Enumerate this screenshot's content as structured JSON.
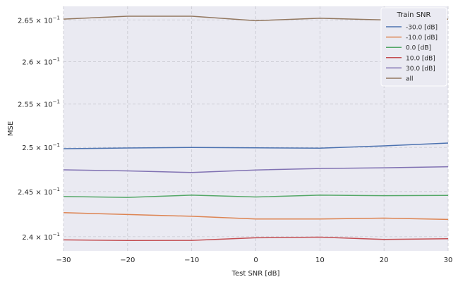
{
  "chart_data": {
    "type": "line",
    "xlabel": "Test SNR [dB]",
    "ylabel": "MSE",
    "x": [
      -30,
      -20,
      -10,
      0,
      10,
      20,
      30
    ],
    "xlim": [
      -30,
      30
    ],
    "ylim": [
      0.23845,
      0.26665
    ],
    "yscale": "log",
    "grid": true,
    "legend_title": "Train SNR",
    "legend_position": "top-right",
    "xticks": [
      {
        "value": -30,
        "label": "−30"
      },
      {
        "value": -20,
        "label": "−20"
      },
      {
        "value": -10,
        "label": "−10"
      },
      {
        "value": 0,
        "label": "0"
      },
      {
        "value": 10,
        "label": "10"
      },
      {
        "value": 20,
        "label": "20"
      },
      {
        "value": 30,
        "label": "30"
      }
    ],
    "yticks": [
      {
        "value": 0.24,
        "mantissa": "2.4",
        "exp": "−1"
      },
      {
        "value": 0.245,
        "mantissa": "2.45",
        "exp": "−1"
      },
      {
        "value": 0.25,
        "mantissa": "2.5",
        "exp": "−1"
      },
      {
        "value": 0.255,
        "mantissa": "2.55",
        "exp": "−1"
      },
      {
        "value": 0.26,
        "mantissa": "2.6",
        "exp": "−1"
      },
      {
        "value": 0.265,
        "mantissa": "2.65",
        "exp": "−1"
      }
    ],
    "series": [
      {
        "name": "-30.0 [dB]",
        "color": "#4c72b0",
        "values": [
          0.24985,
          0.24993,
          0.25,
          0.24995,
          0.24992,
          0.25017,
          0.2505
        ]
      },
      {
        "name": "-10.0 [dB]",
        "color": "#dd8452",
        "values": [
          0.24265,
          0.24245,
          0.24225,
          0.24195,
          0.24195,
          0.24205,
          0.2419
        ]
      },
      {
        "name": "0.0 [dB]",
        "color": "#55a868",
        "values": [
          0.24445,
          0.24435,
          0.2446,
          0.2444,
          0.2446,
          0.24455,
          0.24457
        ]
      },
      {
        "name": "10.0 [dB]",
        "color": "#c44e52",
        "values": [
          0.23965,
          0.23958,
          0.2396,
          0.23988,
          0.23995,
          0.2397,
          0.23978
        ]
      },
      {
        "name": "30.0 [dB]",
        "color": "#8172b3",
        "values": [
          0.24745,
          0.24733,
          0.24715,
          0.24743,
          0.2476,
          0.24768,
          0.2478
        ]
      },
      {
        "name": "all",
        "color": "#937860",
        "values": [
          0.2651,
          0.26545,
          0.26545,
          0.2649,
          0.2652,
          0.265,
          0.2651
        ]
      }
    ]
  }
}
